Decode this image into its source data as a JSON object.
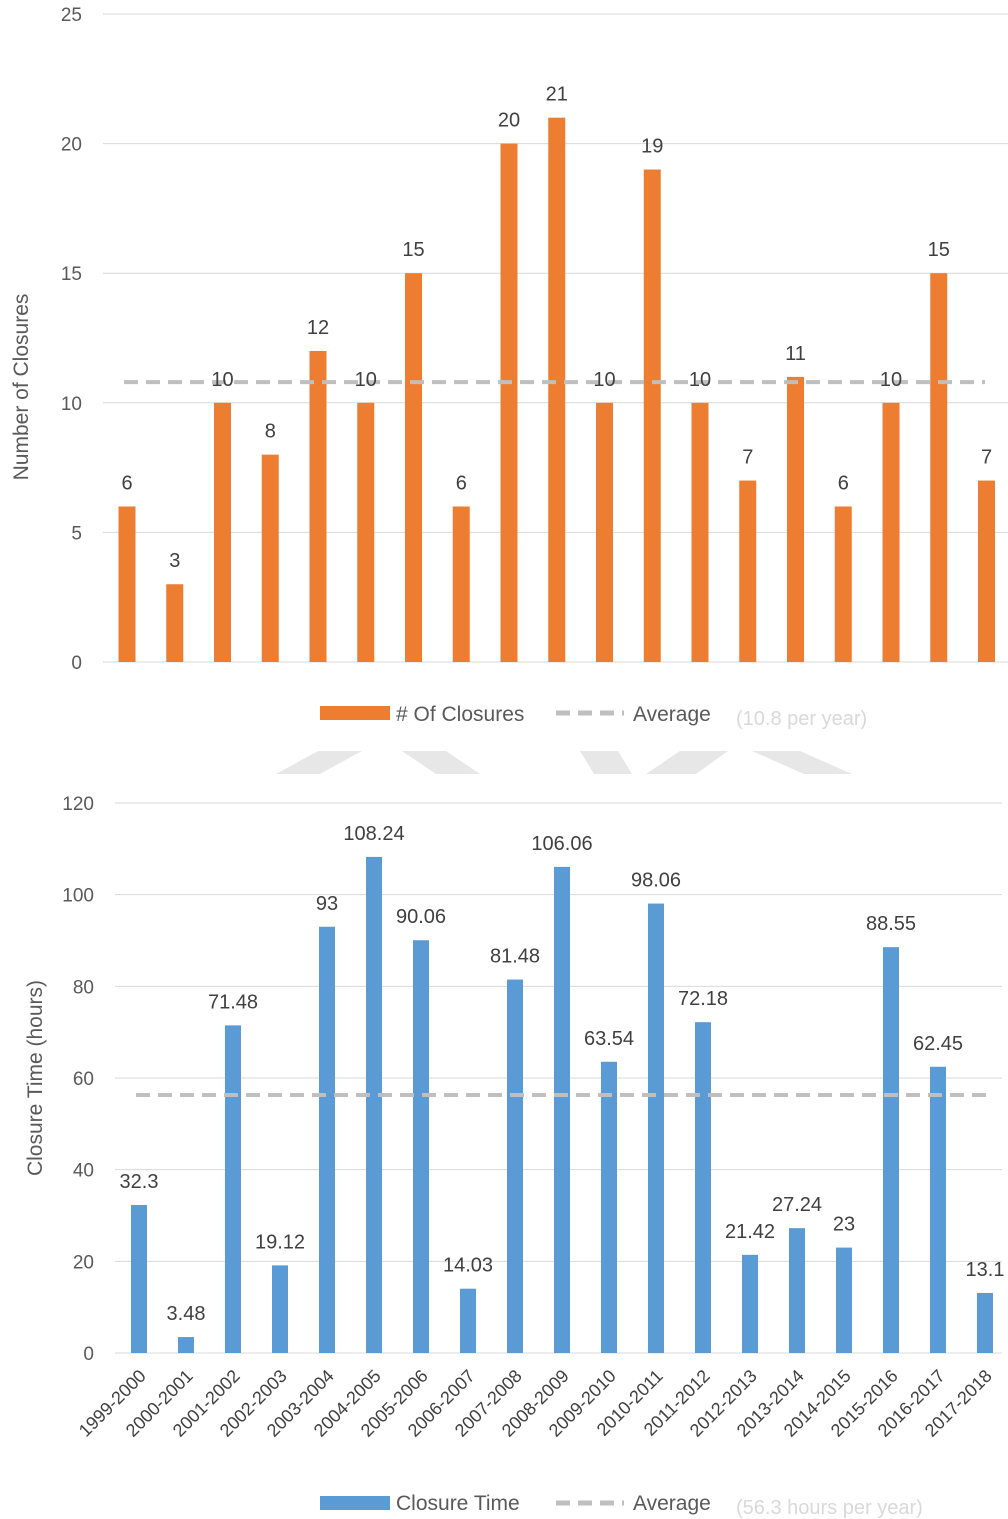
{
  "chart_data": [
    {
      "type": "bar",
      "categories": [
        "1999-2000",
        "2000-2001",
        "2001-2002",
        "2002-2003",
        "2003-2004",
        "2004-2005",
        "2005-2006",
        "2006-2007",
        "2007-2008",
        "2008-2009",
        "2009-2010",
        "2010-2011",
        "2011-2012",
        "2012-2013",
        "2013-2014",
        "2014-2015",
        "2015-2016",
        "2016-2017",
        "2017-2018"
      ],
      "series": [
        {
          "name": "# Of Closures",
          "values": [
            6,
            3,
            10,
            8,
            12,
            10,
            15,
            6,
            20,
            21,
            10,
            19,
            10,
            7,
            11,
            6,
            10,
            15,
            7
          ],
          "color": "#ED7D31"
        },
        {
          "name": "Average",
          "value": 10.8,
          "style": "dashed",
          "color": "#BFBFBF"
        }
      ],
      "ylabel": "Number of Closures",
      "ylim": [
        0,
        25
      ],
      "yticks": [
        0,
        5,
        10,
        15,
        20,
        25
      ],
      "grid": true,
      "legend": {
        "position": "bottom",
        "bar_label": "# Of Closures",
        "line_label": "Average",
        "note": "(10.8 per year)"
      }
    },
    {
      "type": "bar",
      "categories": [
        "1999-2000",
        "2000-2001",
        "2001-2002",
        "2002-2003",
        "2003-2004",
        "2004-2005",
        "2005-2006",
        "2006-2007",
        "2007-2008",
        "2008-2009",
        "2009-2010",
        "2010-2011",
        "2011-2012",
        "2012-2013",
        "2013-2014",
        "2014-2015",
        "2015-2016",
        "2016-2017",
        "2017-2018"
      ],
      "series": [
        {
          "name": "Closure Time",
          "values": [
            32.3,
            3.48,
            71.48,
            19.12,
            93,
            108.24,
            90.06,
            14.03,
            81.48,
            106.06,
            63.54,
            98.06,
            72.18,
            21.42,
            27.24,
            23,
            88.55,
            62.45,
            13.1
          ],
          "color": "#5B9BD5"
        },
        {
          "name": "Average",
          "value": 56.3,
          "style": "dashed",
          "color": "#BFBFBF"
        }
      ],
      "ylabel": "Closure Time (hours)",
      "ylim": [
        0,
        120
      ],
      "yticks": [
        0,
        20,
        40,
        60,
        80,
        100,
        120
      ],
      "grid": true,
      "legend": {
        "position": "bottom",
        "bar_label": "Closure Time",
        "line_label": "Average",
        "note": "(56.3 hours per year)"
      }
    }
  ],
  "decoration_color": "#E7E7E7"
}
